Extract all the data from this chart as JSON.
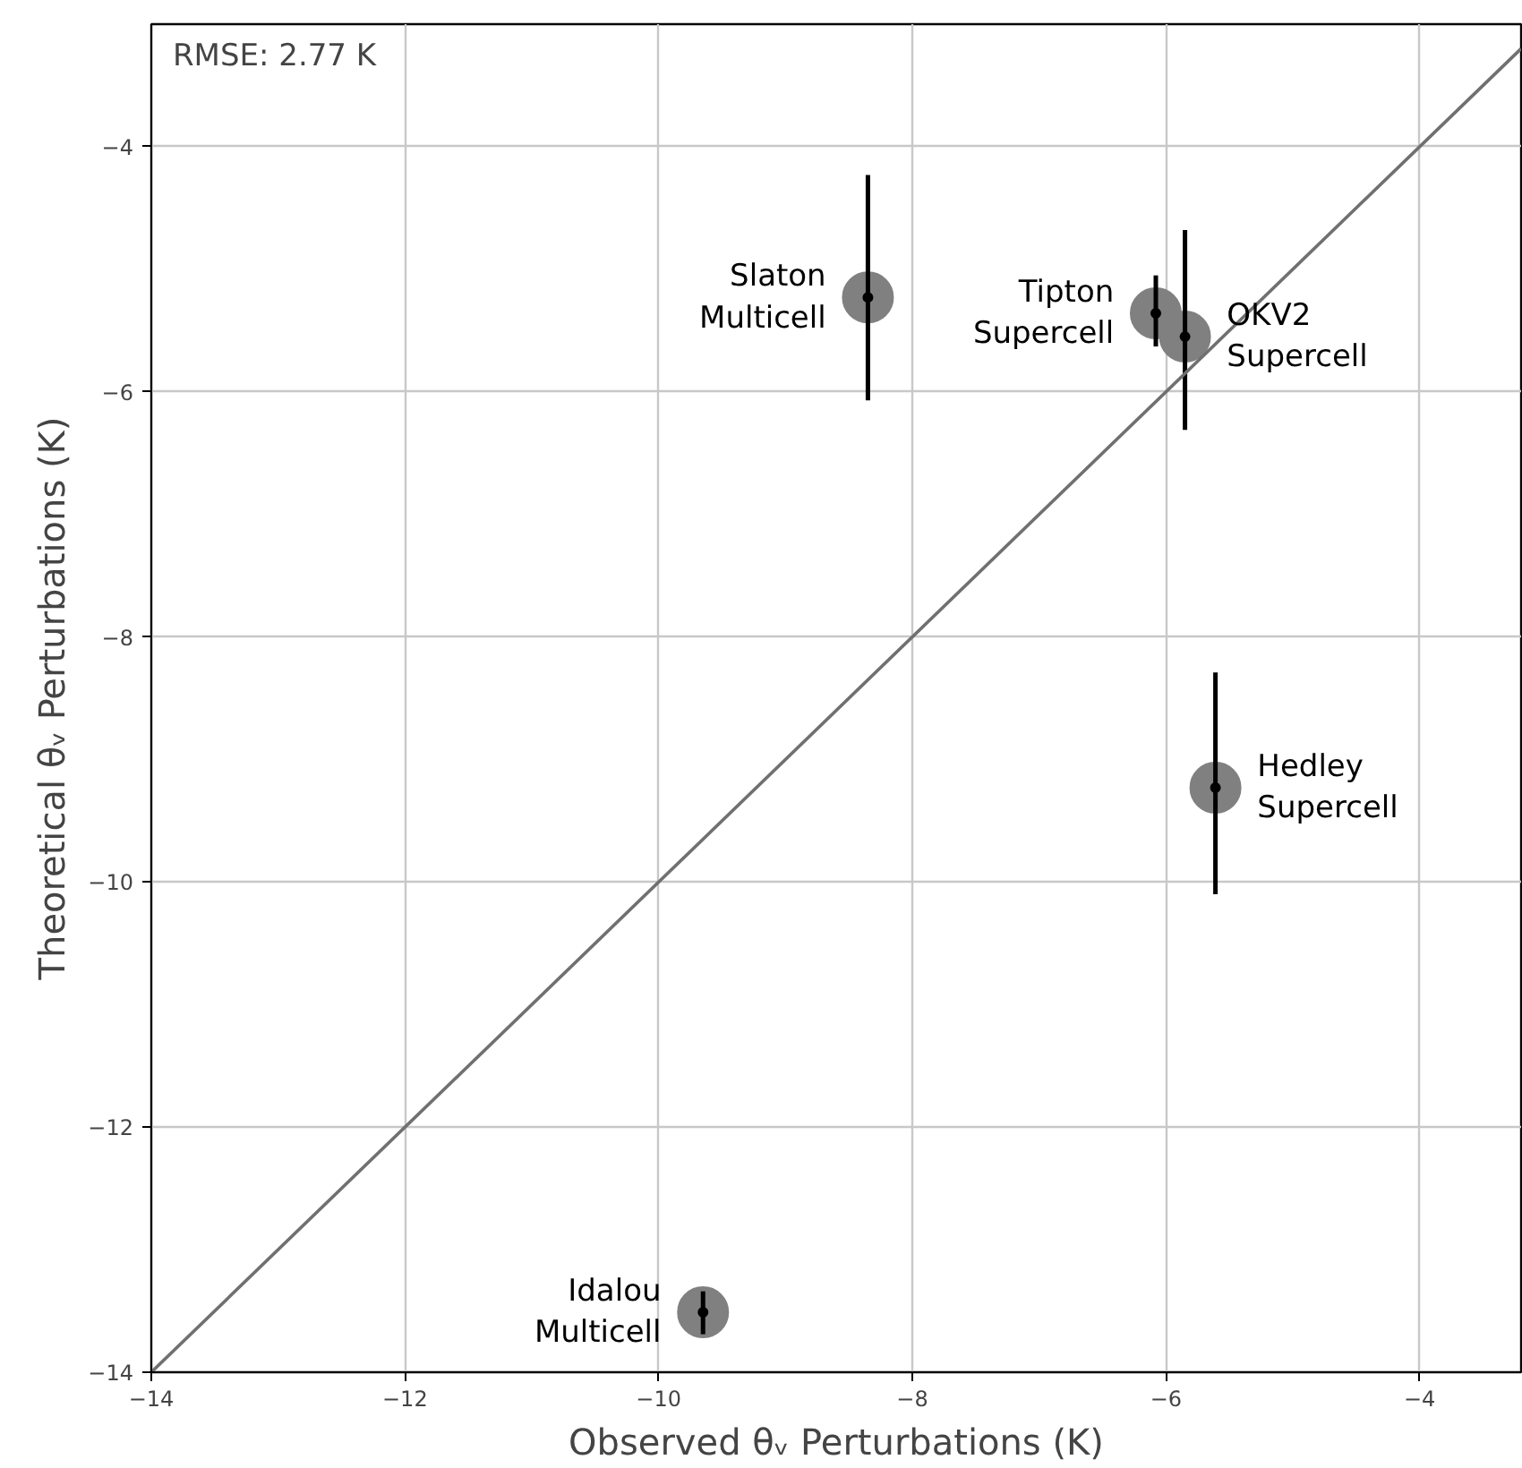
{
  "chart_data": {
    "type": "scatter",
    "xlabel": "Observed θᵥ Perturbations (K)",
    "ylabel": "Theoretical θᵥ Perturbations (K)",
    "xlim": [
      -14,
      -3.2
    ],
    "ylim": [
      -14,
      -3.0
    ],
    "xticks": [
      -14,
      -12,
      -10,
      -8,
      -6,
      -4
    ],
    "yticks": [
      -14,
      -12,
      -10,
      -8,
      -6,
      -4
    ],
    "grid": true,
    "series": [
      {
        "marker": "circle",
        "color": "#808080",
        "x": [
          -8.35,
          -6.08,
          -5.85,
          -5.61,
          -9.65
        ],
        "values": [
          -5.23,
          -5.36,
          -5.55,
          -9.23,
          -13.51
        ],
        "errors": [
          [
            -6.07,
            -4.23
          ],
          [
            -5.63,
            -5.05
          ],
          [
            -6.31,
            -4.68
          ],
          [
            -10.1,
            -8.29
          ],
          [
            -13.69,
            -13.34
          ]
        ]
      },
      {
        "type": "line",
        "color": "#707070",
        "x": [
          -14,
          -3.2
        ],
        "values": [
          -14,
          -3.2
        ]
      }
    ],
    "annotations": [
      "RMSE: 2.77 K",
      {
        "text": "Slaton\nMulticell",
        "x": -8.35,
        "y": -5.23
      },
      {
        "text": "Tipton\nSupercell",
        "x": -6.08,
        "y": -5.36
      },
      {
        "text": "OKV2\nSupercell",
        "x": -5.85,
        "y": -5.55
      },
      {
        "text": "Hedley\nSupercell",
        "x": -5.61,
        "y": -9.23
      },
      {
        "text": "Idalou\nMulticell",
        "x": -9.65,
        "y": -13.51
      }
    ]
  }
}
